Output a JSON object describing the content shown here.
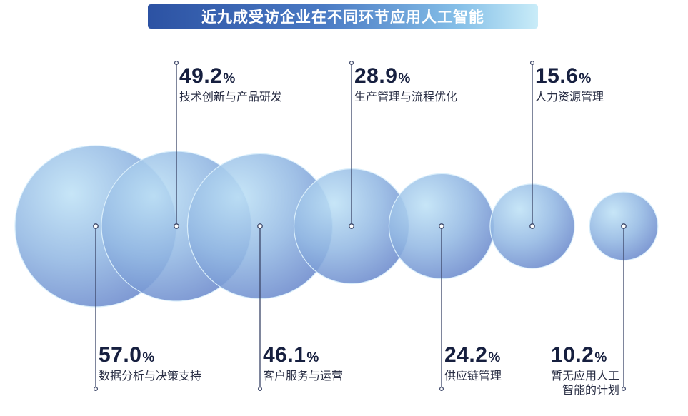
{
  "title": "近九成受访企业在不同环节应用人工智能",
  "colors": {
    "bubble_light": "#b6daf3",
    "bubble_mid": "#8db3e0",
    "bubble_dark": "#6f8fd0",
    "line": "#3a4466",
    "title_dark": "#2c52a3",
    "title_light": "#c9ecf8"
  },
  "chart_data": {
    "type": "bubble",
    "unit": "%",
    "categories": [
      "数据分析与决策支持",
      "技术创新与产品研发",
      "客户服务与运营",
      "生产管理与流程优化",
      "供应链管理",
      "人力资源管理",
      "暂无应用人工智能的计划"
    ],
    "values": [
      57.0,
      49.2,
      46.1,
      28.9,
      24.2,
      15.6,
      10.2
    ],
    "items": [
      {
        "value": "57.0",
        "unit": "%",
        "label_lines": [
          "数据分析与决策支持"
        ],
        "position": "bottom"
      },
      {
        "value": "49.2",
        "unit": "%",
        "label_lines": [
          "技术创新与产品研发"
        ],
        "position": "top"
      },
      {
        "value": "46.1",
        "unit": "%",
        "label_lines": [
          "客户服务与运营"
        ],
        "position": "bottom"
      },
      {
        "value": "28.9",
        "unit": "%",
        "label_lines": [
          "生产管理与流程优化"
        ],
        "position": "top"
      },
      {
        "value": "24.2",
        "unit": "%",
        "label_lines": [
          "供应链管理"
        ],
        "position": "bottom"
      },
      {
        "value": "15.6",
        "unit": "%",
        "label_lines": [
          "人力资源管理"
        ],
        "position": "top"
      },
      {
        "value": "10.2",
        "unit": "%",
        "label_lines": [
          "暂无应用人工",
          "智能的计划"
        ],
        "position": "bottom"
      }
    ]
  }
}
